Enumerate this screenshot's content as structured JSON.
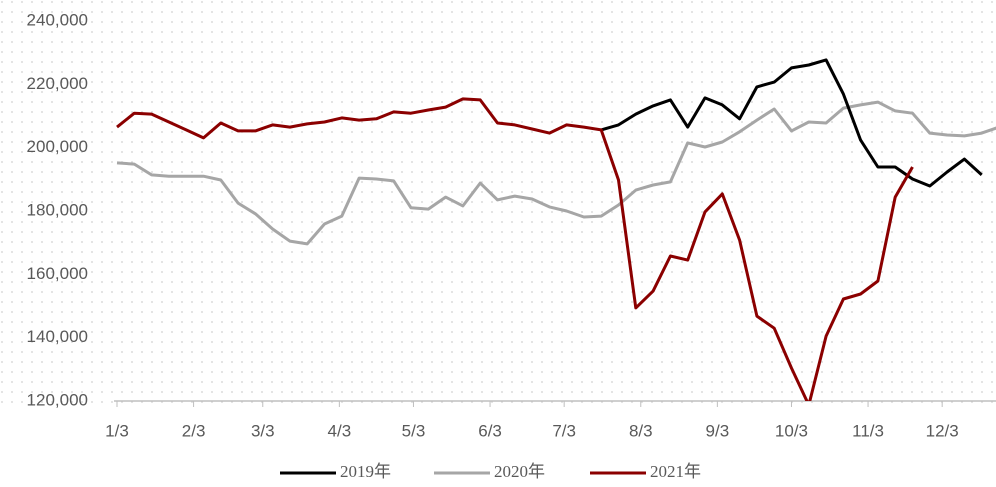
{
  "chart_data": {
    "type": "line",
    "x": [
      0,
      7,
      14,
      21,
      28,
      35,
      42,
      49,
      56,
      63,
      70,
      77,
      84,
      91,
      98,
      105,
      112,
      119,
      126,
      133,
      140,
      147,
      154,
      161,
      168,
      175,
      182,
      189,
      196,
      203,
      210,
      217,
      224,
      231,
      238,
      245,
      252,
      259,
      266,
      273,
      280,
      287,
      294,
      301,
      308,
      315,
      322,
      329,
      336,
      343,
      350,
      357
    ],
    "xlim": [
      0,
      357
    ],
    "xticks": [
      {
        "value": 0,
        "label": "1/3"
      },
      {
        "value": 31,
        "label": "2/3"
      },
      {
        "value": 59,
        "label": "3/3"
      },
      {
        "value": 90,
        "label": "4/3"
      },
      {
        "value": 120,
        "label": "5/3"
      },
      {
        "value": 151,
        "label": "6/3"
      },
      {
        "value": 181,
        "label": "7/3"
      },
      {
        "value": 212,
        "label": "8/3"
      },
      {
        "value": 243,
        "label": "9/3"
      },
      {
        "value": 273,
        "label": "10/3"
      },
      {
        "value": 304,
        "label": "11/3"
      },
      {
        "value": 334,
        "label": "12/3"
      }
    ],
    "ylim": [
      120000,
      240000
    ],
    "yticks": [
      {
        "value": 120000,
        "label": "120,000"
      },
      {
        "value": 140000,
        "label": "140,000"
      },
      {
        "value": 160000,
        "label": "160,000"
      },
      {
        "value": 180000,
        "label": "180,000"
      },
      {
        "value": 200000,
        "label": "200,000"
      },
      {
        "value": 220000,
        "label": "220,000"
      },
      {
        "value": 240000,
        "label": "240,000"
      }
    ],
    "legend": "bottom",
    "series": [
      {
        "name": "2019年",
        "color": "#000000",
        "values": [
          null,
          null,
          null,
          null,
          null,
          null,
          null,
          null,
          null,
          null,
          null,
          null,
          null,
          null,
          null,
          null,
          null,
          null,
          null,
          null,
          null,
          null,
          null,
          null,
          null,
          null,
          null,
          null,
          205600,
          207200,
          210600,
          213200,
          215100,
          206500,
          215700,
          213500,
          209100,
          219200,
          220700,
          225200,
          226100,
          227700,
          216900,
          202400,
          193900,
          193900,
          190100,
          187900,
          192300,
          196400,
          191400,
          null
        ]
      },
      {
        "name": "2020年",
        "color": "#a6a6a6",
        "values": [
          195200,
          194800,
          191400,
          191000,
          191000,
          191000,
          189800,
          182500,
          179100,
          174300,
          170500,
          169600,
          175900,
          178400,
          190400,
          190100,
          189500,
          181000,
          180600,
          184400,
          181600,
          188800,
          183500,
          184700,
          183800,
          181300,
          180000,
          178100,
          178400,
          181900,
          186600,
          188200,
          189200,
          201500,
          200200,
          201800,
          205000,
          208700,
          212200,
          205300,
          208100,
          207800,
          212500,
          213500,
          214400,
          211600,
          210900,
          204600,
          204000,
          203700,
          204600,
          206500
        ]
      },
      {
        "name": "2021年",
        "color": "#8b0000",
        "values": [
          206500,
          210900,
          210600,
          208100,
          205600,
          203100,
          207800,
          205300,
          205300,
          207200,
          206500,
          207500,
          208100,
          209400,
          208700,
          209100,
          211300,
          210900,
          211900,
          212800,
          215400,
          215100,
          207800,
          207200,
          205900,
          204600,
          207200,
          206500,
          205600,
          189800,
          149400,
          154700,
          165800,
          164500,
          179700,
          185400,
          170800,
          146800,
          143000,
          130400,
          118700,
          140500,
          152200,
          153800,
          157900,
          184400,
          193900,
          null,
          null,
          null,
          null,
          null
        ]
      }
    ]
  }
}
